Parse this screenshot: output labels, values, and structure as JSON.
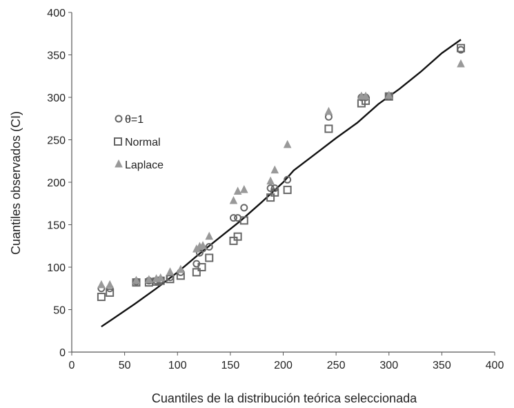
{
  "chart_data": {
    "type": "scatter",
    "xlabel": "Cuantiles de la distribución teórica seleccionada",
    "ylabel": "Cuantiles observados (CI)",
    "xlim": [
      0,
      400
    ],
    "ylim": [
      0,
      400
    ],
    "x_ticks": [
      "0",
      "50",
      "100",
      "150",
      "200",
      "250",
      "300",
      "350",
      "400"
    ],
    "y_ticks": [
      "0",
      "50",
      "100",
      "150",
      "200",
      "250",
      "300",
      "350",
      "400"
    ],
    "grid": false,
    "legend_position": "upper-left",
    "series": [
      {
        "name": "θ=1",
        "marker": "circle",
        "color": "#666666",
        "points": [
          [
            28,
            75
          ],
          [
            36,
            75
          ],
          [
            61,
            83
          ],
          [
            73,
            84
          ],
          [
            80,
            84
          ],
          [
            84,
            85
          ],
          [
            93,
            88
          ],
          [
            103,
            94
          ],
          [
            118,
            104
          ],
          [
            121,
            117
          ],
          [
            124,
            122
          ],
          [
            130,
            124
          ],
          [
            153,
            158
          ],
          [
            157,
            158
          ],
          [
            163,
            170
          ],
          [
            188,
            193
          ],
          [
            192,
            193
          ],
          [
            204,
            203
          ],
          [
            243,
            277
          ],
          [
            274,
            300
          ],
          [
            278,
            300
          ],
          [
            300,
            301
          ],
          [
            368,
            356
          ]
        ]
      },
      {
        "name": "Normal",
        "marker": "square",
        "color": "#666666",
        "points": [
          [
            28,
            65
          ],
          [
            36,
            70
          ],
          [
            61,
            82
          ],
          [
            73,
            82
          ],
          [
            80,
            83
          ],
          [
            84,
            84
          ],
          [
            93,
            86
          ],
          [
            103,
            90
          ],
          [
            118,
            94
          ],
          [
            123,
            100
          ],
          [
            130,
            111
          ],
          [
            153,
            131
          ],
          [
            157,
            136
          ],
          [
            163,
            155
          ],
          [
            188,
            182
          ],
          [
            192,
            188
          ],
          [
            204,
            191
          ],
          [
            243,
            263
          ],
          [
            274,
            293
          ],
          [
            278,
            296
          ],
          [
            300,
            301
          ],
          [
            368,
            358
          ]
        ]
      },
      {
        "name": "Laplace",
        "marker": "triangle",
        "color": "#999999",
        "points": [
          [
            28,
            79
          ],
          [
            36,
            79
          ],
          [
            61,
            84
          ],
          [
            73,
            85
          ],
          [
            80,
            86
          ],
          [
            84,
            87
          ],
          [
            93,
            94
          ],
          [
            103,
            97
          ],
          [
            118,
            121
          ],
          [
            121,
            124
          ],
          [
            124,
            125
          ],
          [
            130,
            136
          ],
          [
            153,
            178
          ],
          [
            157,
            189
          ],
          [
            163,
            191
          ],
          [
            188,
            201
          ],
          [
            192,
            214
          ],
          [
            204,
            244
          ],
          [
            243,
            283
          ],
          [
            274,
            301
          ],
          [
            278,
            301
          ],
          [
            300,
            302
          ],
          [
            368,
            339
          ]
        ]
      },
      {
        "name": "",
        "type": "line",
        "color": "#111111",
        "points": [
          [
            28,
            30
          ],
          [
            40,
            40
          ],
          [
            60,
            57
          ],
          [
            80,
            75
          ],
          [
            100,
            94
          ],
          [
            120,
            115
          ],
          [
            140,
            135
          ],
          [
            160,
            155
          ],
          [
            180,
            177
          ],
          [
            200,
            200
          ],
          [
            210,
            214
          ],
          [
            230,
            233
          ],
          [
            250,
            252
          ],
          [
            270,
            270
          ],
          [
            290,
            292
          ],
          [
            310,
            310
          ],
          [
            330,
            330
          ],
          [
            350,
            352
          ],
          [
            368,
            368
          ]
        ]
      }
    ]
  }
}
